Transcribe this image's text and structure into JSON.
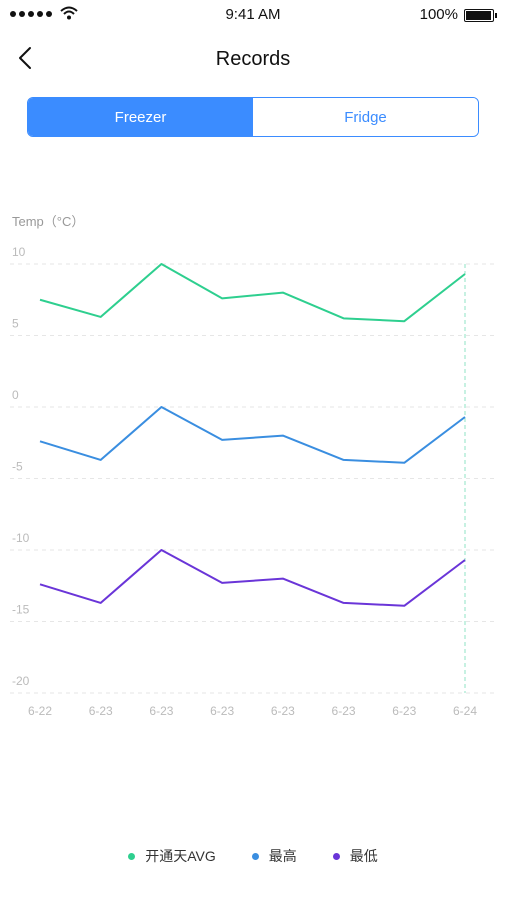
{
  "status_bar": {
    "time": "9:41 AM",
    "battery": "100%"
  },
  "nav": {
    "title": "Records"
  },
  "tabs": [
    {
      "label": "Freezer",
      "active": true
    },
    {
      "label": "Fridge",
      "active": false
    }
  ],
  "colors": {
    "accent": "#3b8cff",
    "avg": "#2ecf8f",
    "high": "#3a8ee0",
    "low": "#6a35d8"
  },
  "chart_data": {
    "type": "line",
    "ylabel": "Temp（°C）",
    "categories": [
      "6-22",
      "6-23",
      "6-23",
      "6-23",
      "6-23",
      "6-23",
      "6-23",
      "6-24"
    ],
    "yticks": [
      10,
      5,
      0,
      -5,
      -10,
      -15,
      -20
    ],
    "ylim": [
      -20,
      10
    ],
    "grid": true,
    "legend": "bottom",
    "highlight_index": 7,
    "series": [
      {
        "name": "开通天AVG",
        "color": "#2ecf8f",
        "values": [
          7.5,
          6.3,
          10,
          7.6,
          8,
          6.2,
          6,
          9.3
        ]
      },
      {
        "name": "最高",
        "color": "#3a8ee0",
        "values": [
          -2.4,
          -3.7,
          0,
          -2.3,
          -2,
          -3.7,
          -3.9,
          -0.7
        ]
      },
      {
        "name": "最低",
        "color": "#6a35d8",
        "values": [
          -12.4,
          -13.7,
          -10,
          -12.3,
          -12,
          -13.7,
          -13.9,
          -10.7
        ]
      }
    ]
  }
}
